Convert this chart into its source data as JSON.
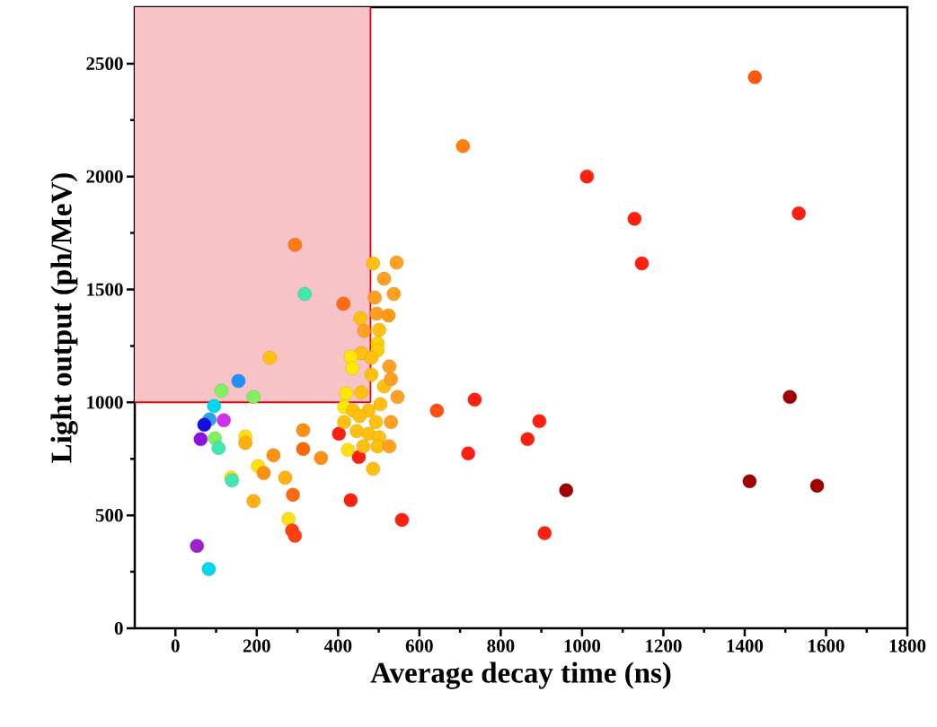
{
  "chart_data": {
    "type": "scatter",
    "xlabel": "Average decay time (ns)",
    "ylabel": "Light output (ph/MeV)",
    "xlim": [
      -100,
      1800
    ],
    "ylim": [
      0,
      2750
    ],
    "xticks": [
      0,
      200,
      400,
      600,
      800,
      1000,
      1200,
      1400,
      1600,
      1800
    ],
    "yticks": [
      0,
      500,
      1000,
      1500,
      2000,
      2500
    ],
    "grid": false,
    "bands": [
      {
        "axis": "x",
        "from": -100,
        "to": 480,
        "color": "#f7c3c6"
      }
    ],
    "ref_lines": [
      {
        "axis": "x",
        "value": 480,
        "color": "#e80000"
      },
      {
        "axis": "y",
        "value": 1000,
        "color": "#e80000"
      }
    ],
    "series": [
      {
        "x": [
          1425,
          707,
          1012,
          1129,
          1533,
          1147,
          1511,
          643,
          736,
          895,
          866,
          720,
          961,
          1412,
          1578,
          908,
          557,
          294,
          318,
          413,
          232,
          155,
          113,
          192,
          95,
          84,
          119,
          71,
          62,
          97,
          106,
          172,
          172,
          241,
          314,
          314,
          358,
          203,
          217,
          137,
          139,
          270,
          289,
          192,
          278,
          287,
          294,
          53,
          82,
          431,
          451,
          402,
          424,
          486,
          486,
          544,
          513,
          490,
          537,
          495,
          524,
          455,
          464,
          501,
          497,
          497,
          457,
          431,
          435,
          482,
          526,
          482,
          513,
          530,
          457,
          420,
          546,
          504,
          415,
          437,
          475,
          415,
          453,
          493,
          530,
          446,
          475,
          501,
          462,
          497,
          526
        ],
        "values": [
          2440,
          2135,
          2000,
          1813,
          1837,
          1615,
          1024,
          964,
          1012,
          917,
          837,
          774,
          611,
          651,
          631,
          421,
          480,
          1698,
          1480,
          1437,
          1198,
          1095,
          1052,
          1024,
          984,
          925,
          921,
          901,
          837,
          841,
          798,
          849,
          821,
          766,
          877,
          794,
          754,
          718,
          687,
          667,
          655,
          667,
          591,
          563,
          484,
          433,
          409,
          365,
          262,
          567,
          758,
          861,
          790,
          706,
          1615,
          1619,
          1548,
          1464,
          1480,
          1393,
          1385,
          1373,
          1317,
          1321,
          1262,
          1230,
          1218,
          1202,
          1151,
          1198,
          1159,
          1123,
          1071,
          1103,
          1044,
          1040,
          1024,
          992,
          980,
          964,
          964,
          913,
          940,
          913,
          913,
          873,
          861,
          845,
          806,
          806,
          806
        ],
        "colors": [
          "#ff5a10",
          "#ff8010",
          "#ff2010",
          "#ff2010",
          "#ff2010",
          "#ff2010",
          "#a00000",
          "#ff5010",
          "#ff2010",
          "#ff2010",
          "#ff2010",
          "#ff2010",
          "#a00000",
          "#a00000",
          "#a00000",
          "#ff2010",
          "#ff2010",
          "#ff7a10",
          "#40e8b0",
          "#ff6a10",
          "#ffc010",
          "#1e90ff",
          "#80f060",
          "#80f060",
          "#00d8f0",
          "#30a0f0",
          "#d030f0",
          "#1010e0",
          "#9010e0",
          "#80f060",
          "#40e8b0",
          "#ffe010",
          "#ffb010",
          "#ff9010",
          "#ff9010",
          "#ff6a00",
          "#ff9010",
          "#ffe010",
          "#ff9010",
          "#ffe010",
          "#40e8b0",
          "#ffb010",
          "#ff6a10",
          "#ffb010",
          "#ffe010",
          "#ff4010",
          "#ff4010",
          "#9a20d0",
          "#00d8f0",
          "#ff2010",
          "#ff2010",
          "#ff2010",
          "#ffe010",
          "#ffc010",
          "#ffc010",
          "#ffa020",
          "#ffa020",
          "#ffa020",
          "#ffa020",
          "#ffa020",
          "#ff9a10",
          "#ffc010",
          "#ffa020",
          "#ffc010",
          "#ffd000",
          "#ffd000",
          "#ffc010",
          "#ffe800",
          "#ffe800",
          "#ffc010",
          "#ffa020",
          "#ffc010",
          "#ffc010",
          "#ffa020",
          "#ffc010",
          "#ffe800",
          "#ffa020",
          "#ffc010",
          "#ffe800",
          "#ffc010",
          "#ffc010",
          "#ffc010",
          "#ffc010",
          "#ffc010",
          "#ffa020",
          "#ffc010",
          "#ffc010",
          "#ffc010",
          "#ffc010",
          "#ffc010",
          "#ffa020"
        ]
      }
    ]
  }
}
